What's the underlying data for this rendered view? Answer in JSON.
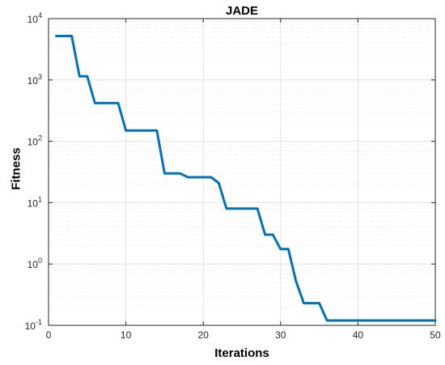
{
  "chart_data": {
    "type": "line",
    "title": "JADE",
    "xlabel": "Iterations",
    "ylabel": "Fitness",
    "xlim": [
      0,
      50
    ],
    "ylim": [
      0.1,
      10000
    ],
    "yscale": "log",
    "grid": true,
    "minor_grid": true,
    "x_ticks": [
      "0",
      "10",
      "20",
      "30",
      "40",
      "50"
    ],
    "y_ticks": [
      {
        "base": "10",
        "exp": "-1"
      },
      {
        "base": "10",
        "exp": "0"
      },
      {
        "base": "10",
        "exp": "1"
      },
      {
        "base": "10",
        "exp": "2"
      },
      {
        "base": "10",
        "exp": "3"
      },
      {
        "base": "10",
        "exp": "4"
      }
    ],
    "series": [
      {
        "color": "#0072BD",
        "x": [
          1,
          2,
          3,
          4,
          5,
          6,
          7,
          8,
          9,
          10,
          11,
          12,
          13,
          14,
          15,
          16,
          17,
          18,
          19,
          20,
          21,
          22,
          23,
          24,
          25,
          26,
          27,
          28,
          29,
          30,
          31,
          32,
          33,
          34,
          35,
          36,
          37,
          38,
          39,
          40,
          41,
          42,
          43,
          44,
          45,
          46,
          47,
          48,
          49,
          50
        ],
        "y": [
          5200,
          5200,
          5200,
          1150,
          1150,
          420,
          420,
          420,
          420,
          150,
          150,
          150,
          150,
          150,
          30,
          30,
          30,
          26,
          26,
          26,
          26,
          21,
          8,
          8,
          8,
          8,
          8,
          3,
          3,
          1.75,
          1.75,
          0.52,
          0.23,
          0.23,
          0.23,
          0.12,
          0.12,
          0.12,
          0.12,
          0.12,
          0.12,
          0.12,
          0.12,
          0.12,
          0.12,
          0.12,
          0.12,
          0.12,
          0.12,
          0.12
        ]
      }
    ]
  }
}
